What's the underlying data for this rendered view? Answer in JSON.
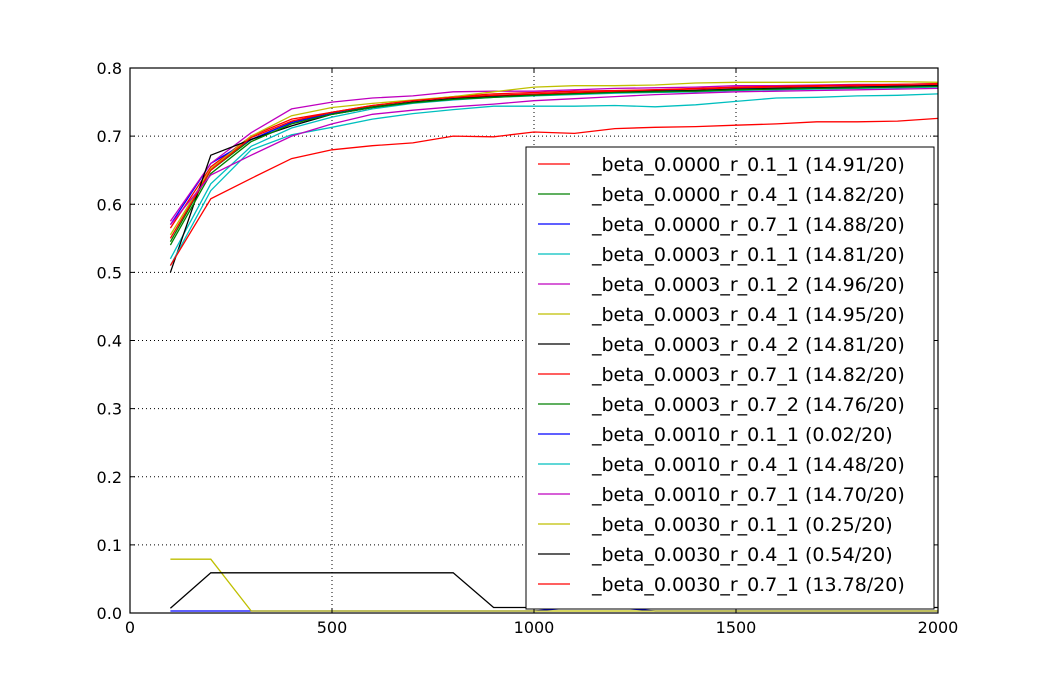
{
  "chart_data": {
    "type": "line",
    "title": "",
    "xlabel": "",
    "ylabel": "",
    "xlim": [
      0,
      2000
    ],
    "ylim": [
      0.0,
      0.8
    ],
    "grid": true,
    "legend_placement": "center-right",
    "xticks": [
      0,
      500,
      1000,
      1500,
      2000
    ],
    "xtick_labels": [
      "0",
      "500",
      "1000",
      "1500",
      "2000"
    ],
    "yticks": [
      0.0,
      0.1,
      0.2,
      0.3,
      0.4,
      0.5,
      0.6,
      0.7,
      0.8
    ],
    "ytick_labels": [
      "0.0",
      "0.1",
      "0.2",
      "0.3",
      "0.4",
      "0.5",
      "0.6",
      "0.7",
      "0.8"
    ],
    "x": [
      100,
      200,
      300,
      400,
      500,
      600,
      700,
      800,
      900,
      1000,
      1100,
      1200,
      1300,
      1400,
      1500,
      1600,
      1700,
      1800,
      1900,
      2000
    ],
    "series": [
      {
        "name": "_beta_0.0000_r_0.1_1 (14.91/20)",
        "color": "#ff0000",
        "values": [
          0.565,
          0.655,
          0.7,
          0.725,
          0.735,
          0.745,
          0.752,
          0.758,
          0.762,
          0.764,
          0.766,
          0.767,
          0.768,
          0.769,
          0.771,
          0.772,
          0.773,
          0.774,
          0.774,
          0.775
        ]
      },
      {
        "name": "_beta_0.0000_r_0.4_1 (14.82/20)",
        "color": "#008000",
        "values": [
          0.545,
          0.65,
          0.695,
          0.72,
          0.735,
          0.743,
          0.75,
          0.755,
          0.758,
          0.76,
          0.762,
          0.764,
          0.765,
          0.766,
          0.768,
          0.769,
          0.77,
          0.771,
          0.772,
          0.773
        ]
      },
      {
        "name": "_beta_0.0000_r_0.7_1 (14.88/20)",
        "color": "#0000ff",
        "values": [
          0.57,
          0.66,
          0.695,
          0.72,
          0.733,
          0.742,
          0.75,
          0.755,
          0.758,
          0.761,
          0.763,
          0.765,
          0.766,
          0.767,
          0.769,
          0.77,
          0.771,
          0.772,
          0.773,
          0.774
        ]
      },
      {
        "name": "_beta_0.0003_r_0.1_1 (14.81/20)",
        "color": "#00bfbf",
        "values": [
          0.52,
          0.63,
          0.685,
          0.712,
          0.728,
          0.74,
          0.748,
          0.753,
          0.757,
          0.759,
          0.761,
          0.763,
          0.764,
          0.765,
          0.767,
          0.768,
          0.769,
          0.77,
          0.771,
          0.772
        ]
      },
      {
        "name": "_beta_0.0003_r_0.1_2 (14.96/20)",
        "color": "#bf00bf",
        "values": [
          0.575,
          0.66,
          0.705,
          0.74,
          0.75,
          0.756,
          0.759,
          0.765,
          0.766,
          0.766,
          0.768,
          0.77,
          0.771,
          0.772,
          0.774,
          0.774,
          0.775,
          0.776,
          0.776,
          0.777
        ]
      },
      {
        "name": "_beta_0.0003_r_0.4_1 (14.95/20)",
        "color": "#bfbf00",
        "values": [
          0.555,
          0.652,
          0.7,
          0.73,
          0.742,
          0.748,
          0.753,
          0.758,
          0.765,
          0.772,
          0.774,
          0.774,
          0.775,
          0.778,
          0.779,
          0.779,
          0.779,
          0.78,
          0.78,
          0.779
        ]
      },
      {
        "name": "_beta_0.0003_r_0.4_2 (14.81/20)",
        "color": "#000000",
        "values": [
          0.5,
          0.672,
          0.695,
          0.715,
          0.732,
          0.742,
          0.75,
          0.755,
          0.759,
          0.761,
          0.763,
          0.765,
          0.766,
          0.767,
          0.769,
          0.77,
          0.771,
          0.772,
          0.773,
          0.774
        ]
      },
      {
        "name": "_beta_0.0003_r_0.7_1 (14.82/20)",
        "color": "#ff0000",
        "values": [
          0.55,
          0.65,
          0.698,
          0.722,
          0.735,
          0.745,
          0.752,
          0.757,
          0.76,
          0.762,
          0.764,
          0.766,
          0.768,
          0.77,
          0.772,
          0.773,
          0.774,
          0.775,
          0.776,
          0.777
        ]
      },
      {
        "name": "_beta_0.0003_r_0.7_2 (14.76/20)",
        "color": "#008000",
        "values": [
          0.54,
          0.645,
          0.692,
          0.718,
          0.732,
          0.742,
          0.749,
          0.754,
          0.757,
          0.76,
          0.762,
          0.764,
          0.765,
          0.766,
          0.768,
          0.769,
          0.77,
          0.771,
          0.772,
          0.773
        ]
      },
      {
        "name": "_beta_0.0010_r_0.1_1 (0.02/20)",
        "color": "#0000ff",
        "values": [
          0.003,
          0.003,
          0.003,
          0.003,
          0.003,
          0.003,
          0.003,
          0.003,
          0.003,
          0.003,
          0.008,
          0.008,
          0.003,
          0.003,
          0.003,
          0.003,
          0.003,
          0.003,
          0.003,
          0.003
        ]
      },
      {
        "name": "_beta_0.0010_r_0.4_1 (14.48/20)",
        "color": "#00bfbf",
        "values": [
          0.51,
          0.62,
          0.68,
          0.702,
          0.713,
          0.725,
          0.733,
          0.739,
          0.744,
          0.744,
          0.744,
          0.745,
          0.743,
          0.746,
          0.751,
          0.756,
          0.757,
          0.759,
          0.76,
          0.762
        ]
      },
      {
        "name": "_beta_0.0010_r_0.7_1 (14.70/20)",
        "color": "#bf00bf",
        "values": [
          0.57,
          0.643,
          0.672,
          0.7,
          0.718,
          0.732,
          0.738,
          0.743,
          0.747,
          0.752,
          0.755,
          0.758,
          0.761,
          0.763,
          0.765,
          0.766,
          0.767,
          0.768,
          0.769,
          0.77
        ]
      },
      {
        "name": "_beta_0.0030_r_0.1_1 (0.25/20)",
        "color": "#bfbf00",
        "values": [
          0.079,
          0.079,
          0.003,
          0.003,
          0.003,
          0.003,
          0.003,
          0.003,
          0.003,
          0.003,
          0.003,
          0.003,
          0.003,
          0.003,
          0.003,
          0.003,
          0.003,
          0.003,
          0.003,
          0.003
        ]
      },
      {
        "name": "_beta_0.0030_r_0.4_1 (0.54/20)",
        "color": "#000000",
        "values": [
          0.007,
          0.059,
          0.059,
          0.059,
          0.059,
          0.059,
          0.059,
          0.059,
          0.008,
          0.008,
          0.008,
          0.008,
          0.008,
          0.008,
          0.008,
          0.008,
          0.008,
          0.008,
          0.008,
          0.008
        ]
      },
      {
        "name": "_beta_0.0030_r_0.7_1 (13.78/20)",
        "color": "#ff0000",
        "values": [
          0.51,
          0.608,
          0.638,
          0.667,
          0.68,
          0.686,
          0.69,
          0.7,
          0.699,
          0.706,
          0.704,
          0.711,
          0.713,
          0.714,
          0.716,
          0.718,
          0.721,
          0.721,
          0.722,
          0.726
        ]
      }
    ]
  }
}
